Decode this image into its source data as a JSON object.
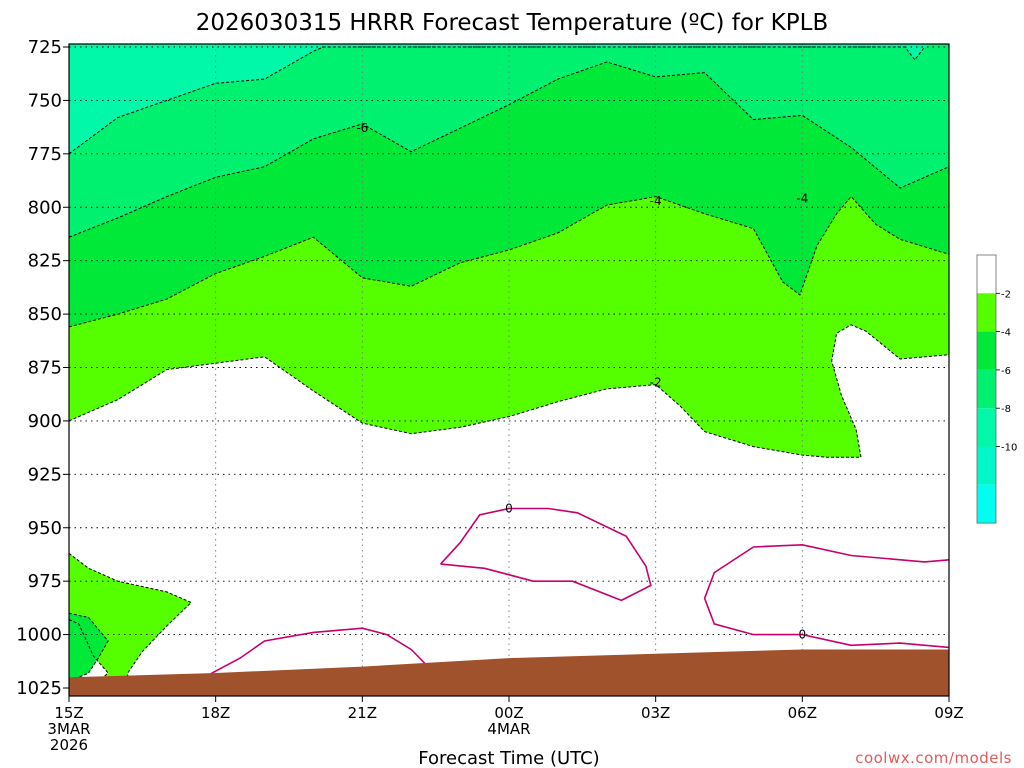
{
  "chart_data": {
    "type": "contour",
    "title": "2026030315 HRRR Forecast Temperature (ºC) for KPLB",
    "xlabel": "Forecast Time (UTC)",
    "ylabel": "",
    "credit": "coolwx.com/models",
    "x_ticks": [
      {
        "hour": 0,
        "lines": [
          "15Z",
          "3MAR",
          "2026"
        ]
      },
      {
        "hour": 3,
        "lines": [
          "18Z"
        ]
      },
      {
        "hour": 6,
        "lines": [
          "21Z"
        ]
      },
      {
        "hour": 9,
        "lines": [
          "00Z",
          "4MAR"
        ]
      },
      {
        "hour": 12,
        "lines": [
          "03Z"
        ]
      },
      {
        "hour": 15,
        "lines": [
          "06Z"
        ]
      },
      {
        "hour": 18,
        "lines": [
          "09Z"
        ]
      }
    ],
    "xlim_hours": [
      0,
      18
    ],
    "y_ticks": [
      725,
      750,
      775,
      800,
      825,
      850,
      875,
      900,
      925,
      950,
      975,
      1000,
      1025
    ],
    "ylim_hpa": [
      1027,
      725
    ],
    "colorbar": {
      "ticks": [
        "-2",
        "-4",
        "-6",
        "-8",
        "-10"
      ],
      "colors": [
        "#ffffff",
        "#55ff00",
        "#00e838",
        "#00f070",
        "#00f8a8",
        "#00f8c8",
        "#00fff0"
      ]
    },
    "fill_levels": [
      {
        "name": "above -2",
        "color": "#ffffff"
      },
      {
        "name": "-2 to -4",
        "color": "#55ff00"
      },
      {
        "name": "-4 to -6",
        "color": "#00e838"
      },
      {
        "name": "-6 to -8",
        "color": "#00f070"
      },
      {
        "name": "-8 to -10",
        "color": "#00f8a8"
      }
    ],
    "ground_color": "#a0522d",
    "zero_line_color": "#c8006e",
    "contour_labels": [
      {
        "text": "-6",
        "hour": 6.0,
        "hpa": 763
      },
      {
        "text": "-4",
        "hour": 12.0,
        "hpa": 797
      },
      {
        "text": "-4",
        "hour": 15.0,
        "hpa": 796
      },
      {
        "text": "-2",
        "hour": 12.0,
        "hpa": 882
      },
      {
        "text": "0",
        "hour": 9.0,
        "hpa": 941
      },
      {
        "text": "0",
        "hour": 15.0,
        "hpa": 1000
      }
    ],
    "isotherm_minus2": [
      [
        0,
        900
      ],
      [
        1,
        890
      ],
      [
        2,
        876
      ],
      [
        3,
        873
      ],
      [
        4,
        870
      ],
      [
        5,
        886
      ],
      [
        6,
        901
      ],
      [
        7,
        906
      ],
      [
        8,
        903
      ],
      [
        9,
        898
      ],
      [
        10,
        891
      ],
      [
        11,
        885
      ],
      [
        12,
        883
      ],
      [
        12.5,
        893
      ],
      [
        13,
        905
      ],
      [
        14,
        912
      ],
      [
        15,
        916
      ],
      [
        15.5,
        917
      ],
      [
        16.2,
        917
      ],
      [
        16.1,
        904
      ],
      [
        15.8,
        888
      ],
      [
        15.6,
        872
      ],
      [
        15.7,
        859
      ],
      [
        16,
        855
      ],
      [
        16.3,
        858
      ],
      [
        17,
        871
      ],
      [
        18,
        869
      ]
    ],
    "isotherm_minus4": [
      [
        0,
        856
      ],
      [
        1,
        850
      ],
      [
        2,
        843
      ],
      [
        3,
        831
      ],
      [
        4,
        823
      ],
      [
        5,
        814
      ],
      [
        6,
        833
      ],
      [
        7,
        837
      ],
      [
        8,
        826
      ],
      [
        9,
        820
      ],
      [
        10,
        812
      ],
      [
        11,
        799
      ],
      [
        12,
        795
      ],
      [
        13,
        803
      ],
      [
        14,
        810
      ],
      [
        14.6,
        835
      ],
      [
        14.95,
        841
      ],
      [
        15.3,
        818
      ],
      [
        15.7,
        803
      ],
      [
        16,
        795
      ],
      [
        16.5,
        808
      ],
      [
        17,
        815
      ],
      [
        18,
        822
      ],
      [
        18,
        818
      ]
    ],
    "isotherm_minus6": [
      [
        0,
        814
      ],
      [
        1,
        805
      ],
      [
        2,
        795
      ],
      [
        3,
        786
      ],
      [
        4,
        781
      ],
      [
        5,
        768
      ],
      [
        6,
        761
      ],
      [
        7,
        774
      ],
      [
        8,
        763
      ],
      [
        9,
        752
      ],
      [
        10,
        740
      ],
      [
        11,
        732
      ],
      [
        12,
        739
      ],
      [
        13,
        737
      ],
      [
        14,
        759
      ],
      [
        15,
        757
      ],
      [
        16,
        772
      ],
      [
        17,
        791
      ],
      [
        18,
        781
      ]
    ],
    "isotherm_minus8": [
      [
        0,
        775
      ],
      [
        1,
        758
      ],
      [
        2,
        750
      ],
      [
        3,
        742
      ],
      [
        4,
        740
      ],
      [
        5,
        727
      ],
      [
        5.2,
        725
      ],
      [
        17.1,
        725
      ],
      [
        17.3,
        731
      ],
      [
        17.5,
        725
      ]
    ],
    "cold_pocket_minus2": [
      [
        0,
        962
      ],
      [
        0.4,
        969
      ],
      [
        1,
        975
      ],
      [
        2,
        980
      ],
      [
        2.5,
        985
      ],
      [
        2,
        996
      ],
      [
        1.5,
        1008
      ],
      [
        1.2,
        1018
      ],
      [
        1.2,
        1022
      ],
      [
        0.6,
        1022
      ],
      [
        0.8,
        1018
      ],
      [
        0.5,
        1010
      ],
      [
        0.2,
        995
      ],
      [
        0,
        993
      ]
    ],
    "cold_pocket_minus4": [
      [
        0,
        990
      ],
      [
        0.4,
        992
      ],
      [
        0.8,
        1003
      ],
      [
        0.6,
        1011
      ],
      [
        0.4,
        1018
      ],
      [
        0,
        1022
      ]
    ],
    "zero_contour_a": [
      [
        2.6,
        1022
      ],
      [
        3.5,
        1011
      ],
      [
        4,
        1003
      ],
      [
        5,
        999
      ],
      [
        6,
        997
      ],
      [
        6.5,
        1000
      ],
      [
        7,
        1007
      ],
      [
        7.3,
        1014
      ],
      [
        6.5,
        1016
      ],
      [
        5,
        1019
      ],
      [
        3,
        1022
      ]
    ],
    "zero_contour_b": [
      [
        7.6,
        967
      ],
      [
        8,
        957
      ],
      [
        8.4,
        944
      ],
      [
        9,
        941
      ],
      [
        9.8,
        941
      ],
      [
        10.4,
        943
      ],
      [
        11.4,
        954
      ],
      [
        11.8,
        968
      ],
      [
        11.9,
        977
      ],
      [
        11.3,
        984
      ],
      [
        10.3,
        975
      ],
      [
        9.5,
        975
      ],
      [
        8.5,
        969
      ],
      [
        7.6,
        967
      ]
    ],
    "zero_contour_c": [
      [
        18,
        965
      ],
      [
        17.5,
        966
      ],
      [
        16,
        963
      ],
      [
        15,
        958
      ],
      [
        14,
        959
      ],
      [
        13.2,
        971
      ],
      [
        13,
        983
      ],
      [
        13.2,
        995
      ],
      [
        14,
        1000
      ],
      [
        15,
        1000
      ],
      [
        16,
        1005
      ],
      [
        17,
        1004
      ],
      [
        18,
        1006
      ]
    ],
    "ground_top": [
      [
        0,
        1020
      ],
      [
        3,
        1018
      ],
      [
        6,
        1015
      ],
      [
        9,
        1011
      ],
      [
        12,
        1009
      ],
      [
        15,
        1007
      ],
      [
        18,
        1007
      ]
    ]
  }
}
